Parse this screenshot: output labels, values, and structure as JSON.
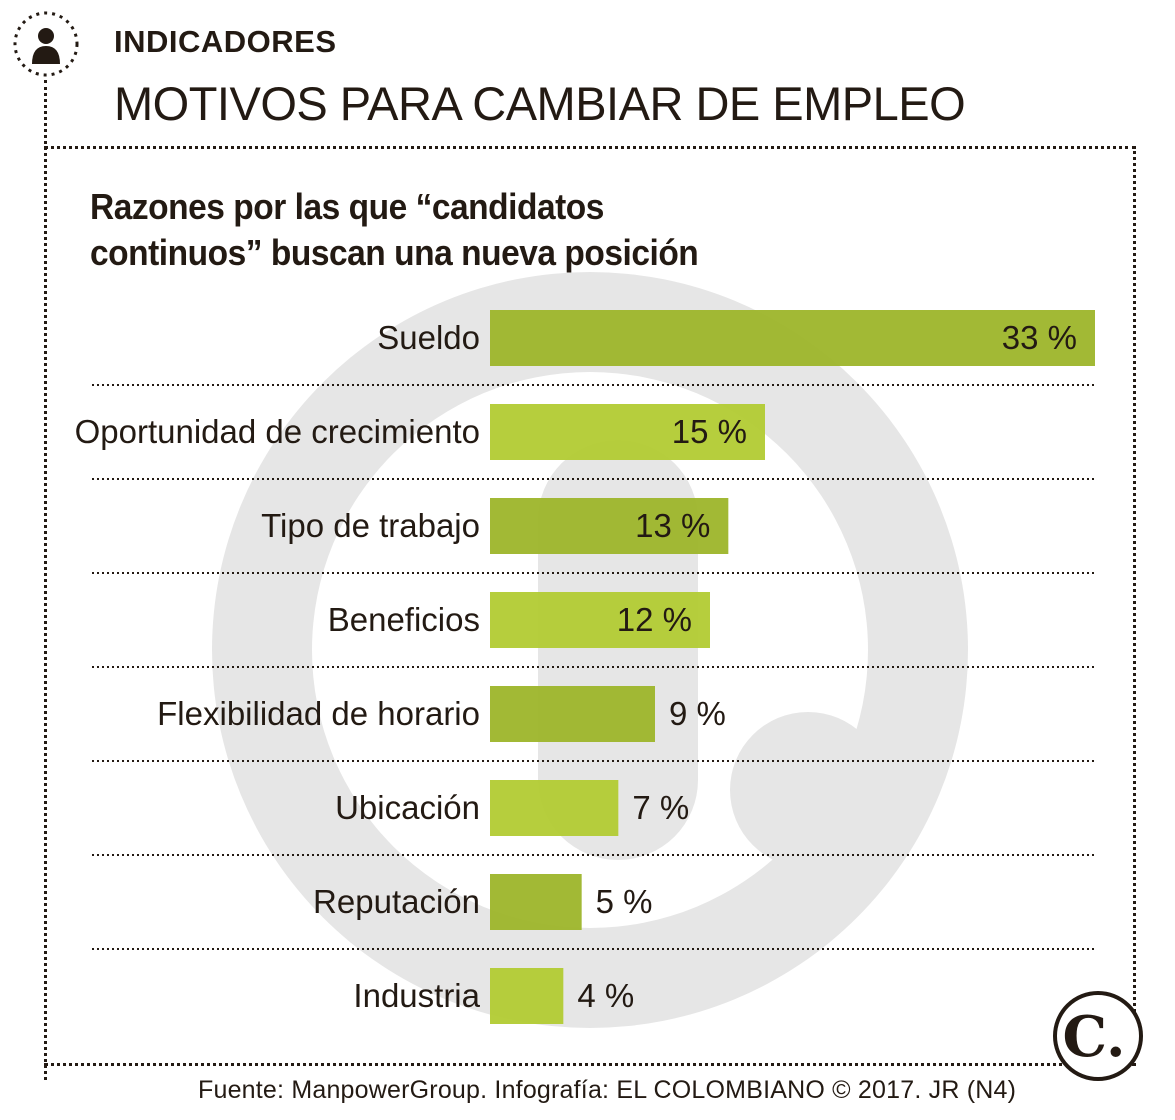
{
  "header": {
    "icon": "person-icon",
    "section_label": "INDICADORES",
    "title": "MOTIVOS PARA CAMBIAR DE EMPLEO"
  },
  "subtitle": {
    "line1": "Razones por las que “candidatos",
    "line2": "continuos” buscan una nueva posición"
  },
  "colors": {
    "bar_dark": "#9db52a",
    "bar_light": "#b2cb33",
    "text": "#231a13",
    "watermark": "#e6e6e6"
  },
  "chart_data": {
    "type": "bar",
    "orientation": "horizontal",
    "categories": [
      "Sueldo",
      "Oportunidad de crecimiento",
      "Tipo de trabajo",
      "Beneficios",
      "Flexibilidad de horario",
      "Ubicación",
      "Reputación",
      "Industria"
    ],
    "values": [
      33,
      15,
      13,
      12,
      9,
      7,
      5,
      4
    ],
    "value_labels": [
      "33 %",
      "15 %",
      "13 %",
      "12 %",
      "9 %",
      "7 %",
      "5 %",
      "4 %"
    ],
    "unit": "%",
    "xlim": [
      0,
      33
    ],
    "grid": false,
    "legend": "none"
  },
  "footer": {
    "source": "Fuente: ManpowerGroup. Infografía: EL COLOMBIANO © 2017. JR (N4)",
    "logo_text": "C."
  }
}
